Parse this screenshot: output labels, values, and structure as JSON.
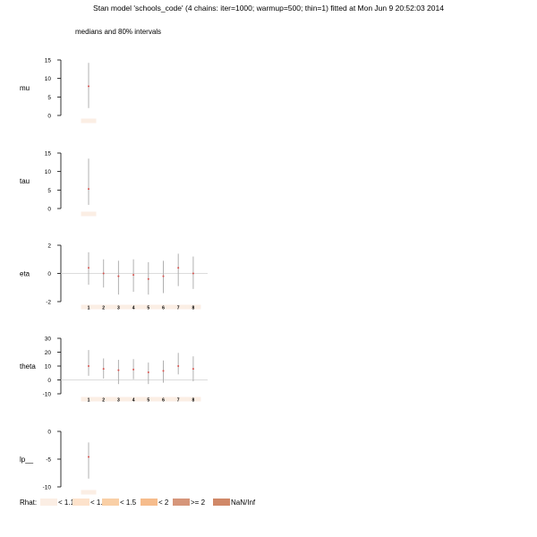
{
  "title": "Stan model 'schools_code' (4 chains: iter=1000; warmup=500; thin=1) fitted at Mon Jun  9 20:52:03 2014",
  "subtitle": "medians and 80% intervals",
  "colors": {
    "interval": "#b0b0b0",
    "median": "#d9534f",
    "zero_line": "#d0d0d0",
    "axis": "#000000"
  },
  "chart_data": {
    "type": "interval",
    "panels": [
      {
        "name": "mu",
        "yticks": [
          0,
          5,
          10,
          15
        ],
        "ylim": [
          0,
          15
        ],
        "zero_line": false,
        "index_labels": [],
        "rhat": [
          "<1.1"
        ],
        "estimates": [
          {
            "median": 7.9,
            "lo80": 2.0,
            "hi80": 14.2
          }
        ]
      },
      {
        "name": "tau",
        "yticks": [
          0,
          5,
          10,
          15
        ],
        "ylim": [
          0,
          15
        ],
        "zero_line": false,
        "index_labels": [],
        "rhat": [
          "<1.1"
        ],
        "estimates": [
          {
            "median": 5.3,
            "lo80": 1.0,
            "hi80": 13.5
          }
        ]
      },
      {
        "name": "eta",
        "yticks": [
          -2,
          0,
          2
        ],
        "ylim": [
          -2,
          2
        ],
        "zero_line": true,
        "index_labels": [
          "1",
          "2",
          "3",
          "4",
          "5",
          "6",
          "7",
          "8"
        ],
        "rhat": [
          "<1.1",
          "<1.1",
          "<1.1",
          "<1.1",
          "<1.1",
          "<1.1",
          "<1.1",
          "<1.1"
        ],
        "estimates": [
          {
            "median": 0.4,
            "lo80": -0.8,
            "hi80": 1.5
          },
          {
            "median": 0.0,
            "lo80": -1.0,
            "hi80": 1.0
          },
          {
            "median": -0.2,
            "lo80": -1.5,
            "hi80": 0.9
          },
          {
            "median": -0.1,
            "lo80": -1.3,
            "hi80": 1.0
          },
          {
            "median": -0.4,
            "lo80": -1.5,
            "hi80": 0.8
          },
          {
            "median": -0.2,
            "lo80": -1.4,
            "hi80": 0.9
          },
          {
            "median": 0.4,
            "lo80": -0.9,
            "hi80": 1.4
          },
          {
            "median": 0.0,
            "lo80": -1.1,
            "hi80": 1.2
          }
        ]
      },
      {
        "name": "theta",
        "yticks": [
          -10,
          0,
          10,
          20,
          30
        ],
        "ylim": [
          -10,
          30
        ],
        "zero_line": true,
        "index_labels": [
          "1",
          "2",
          "3",
          "4",
          "5",
          "6",
          "7",
          "8"
        ],
        "rhat": [
          "<1.1",
          "<1.1",
          "<1.1",
          "<1.1",
          "<1.1",
          "<1.1",
          "<1.1",
          "<1.1"
        ],
        "estimates": [
          {
            "median": 10.0,
            "lo80": 3.0,
            "hi80": 21.5
          },
          {
            "median": 8.0,
            "lo80": 1.0,
            "hi80": 15.5
          },
          {
            "median": 7.0,
            "lo80": -3.0,
            "hi80": 14.5
          },
          {
            "median": 7.5,
            "lo80": 0.5,
            "hi80": 15.0
          },
          {
            "median": 5.5,
            "lo80": -3.0,
            "hi80": 12.5
          },
          {
            "median": 6.5,
            "lo80": -2.0,
            "hi80": 14.0
          },
          {
            "median": 10.0,
            "lo80": 4.0,
            "hi80": 19.5
          },
          {
            "median": 8.0,
            "lo80": -1.0,
            "hi80": 17.0
          }
        ]
      },
      {
        "name": "lp__",
        "yticks": [
          -10,
          -5,
          0
        ],
        "ylim": [
          -10,
          0
        ],
        "zero_line": false,
        "index_labels": [],
        "rhat": [
          "<1.1"
        ],
        "estimates": [
          {
            "median": -4.6,
            "lo80": -8.5,
            "hi80": -2.0
          }
        ]
      }
    ]
  },
  "legend": {
    "title": "Rhat:",
    "items": [
      {
        "label": "< 1.1",
        "color": "#fbeee4"
      },
      {
        "label": "< 1.2",
        "color": "#fde2cb"
      },
      {
        "label": "< 1.5",
        "color": "#f9cfa6"
      },
      {
        "label": "< 2",
        "color": "#f6bc8c"
      },
      {
        "label": ">= 2",
        "color": "#d6967a"
      },
      {
        "label": "NaN/Inf",
        "color": "#d08868"
      }
    ]
  }
}
